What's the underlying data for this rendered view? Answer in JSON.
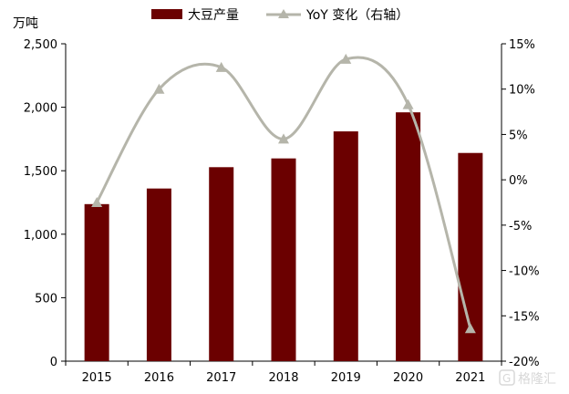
{
  "chart_data": {
    "type": "bar+line",
    "categories": [
      "2015",
      "2016",
      "2017",
      "2018",
      "2019",
      "2020",
      "2021"
    ],
    "series": [
      {
        "name": "大豆产量",
        "type": "bar",
        "axis": "left",
        "color": "#6b0000",
        "values": [
          1237,
          1360,
          1528,
          1597,
          1810,
          1960,
          1640
        ]
      },
      {
        "name": "YoY 变化（右轴）",
        "type": "line",
        "axis": "right",
        "color": "#b5b5aa",
        "values": [
          -2.5,
          10.0,
          12.4,
          4.5,
          13.3,
          8.3,
          -16.4
        ]
      }
    ],
    "left_axis": {
      "unit": "万吨",
      "ylim": [
        0,
        2500
      ],
      "ticks": [
        0,
        500,
        1000,
        1500,
        2000,
        2500
      ],
      "tick_labels": [
        "0",
        "500",
        "1,000",
        "1,500",
        "2,000",
        "2,500"
      ]
    },
    "right_axis": {
      "ylim": [
        -20,
        15
      ],
      "ticks": [
        -20,
        -15,
        -10,
        -5,
        0,
        5,
        10,
        15
      ],
      "tick_labels": [
        "-20%",
        "-15%",
        "-10%",
        "-5%",
        "0%",
        "5%",
        "10%",
        "15%"
      ]
    },
    "grid": false,
    "legend_position": "top-center"
  },
  "watermark": {
    "text": "格隆汇",
    "icon": "g-logo-icon"
  }
}
